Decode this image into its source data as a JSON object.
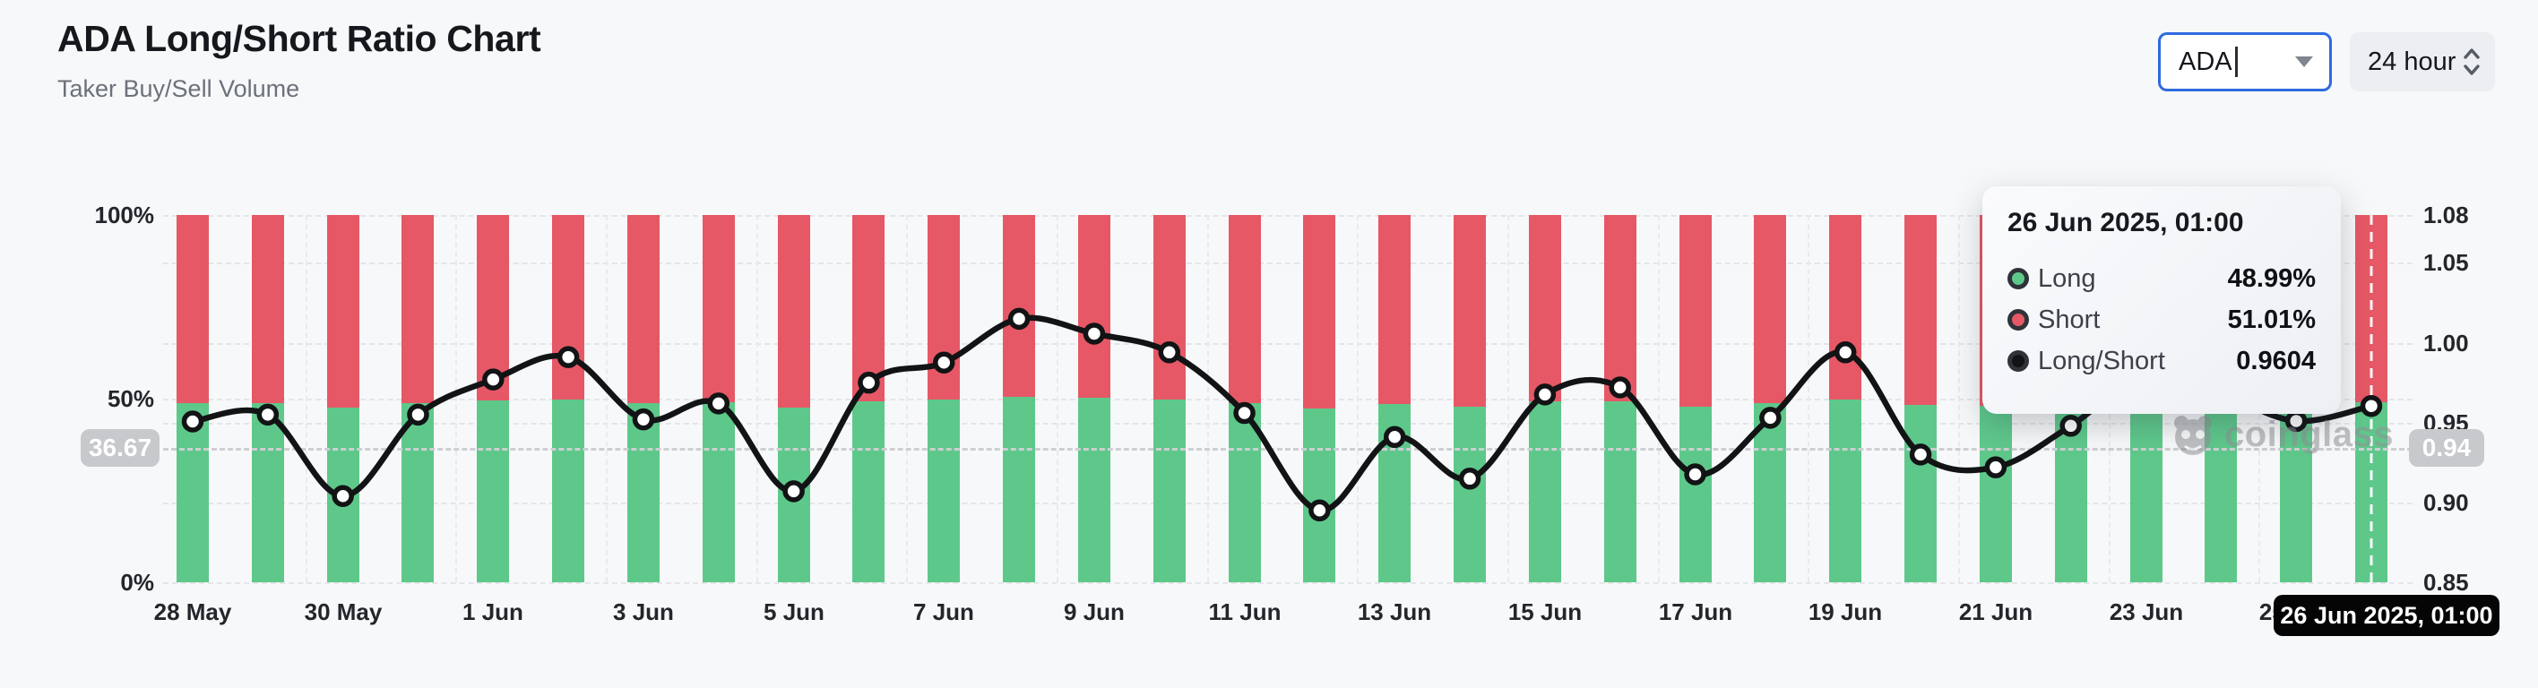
{
  "header": {
    "title": "ADA Long/Short Ratio Chart",
    "subtitle": "Taker Buy/Sell Volume"
  },
  "controls": {
    "symbol_select": {
      "value": "ADA"
    },
    "interval_select": {
      "value": "24 hour"
    }
  },
  "colors": {
    "long_green": "#5ec88b",
    "short_red": "#e65866",
    "ratio_line": "#121315",
    "accent_focus_blue": "#2e6be0",
    "grid": "#e4e5e8",
    "badge_gray": "#c7c9cd",
    "badge_black": "#050506"
  },
  "chart_data": {
    "type": "stacked-bar+line",
    "title": "ADA Long/Short Ratio Chart",
    "categories": [
      "28 May",
      "29 May",
      "30 May",
      "31 May",
      "1 Jun",
      "2 Jun",
      "3 Jun",
      "4 Jun",
      "5 Jun",
      "6 Jun",
      "7 Jun",
      "8 Jun",
      "9 Jun",
      "10 Jun",
      "11 Jun",
      "12 Jun",
      "13 Jun",
      "14 Jun",
      "15 Jun",
      "16 Jun",
      "17 Jun",
      "18 Jun",
      "19 Jun",
      "20 Jun",
      "21 Jun",
      "22 Jun",
      "23 Jun",
      "24 Jun",
      "25 Jun",
      "26 Jun"
    ],
    "x_tick_labels": [
      "28 May",
      "30 May",
      "1 Jun",
      "3 Jun",
      "5 Jun",
      "7 Jun",
      "9 Jun",
      "11 Jun",
      "13 Jun",
      "15 Jun",
      "17 Jun",
      "19 Jun",
      "21 Jun",
      "23 Jun",
      "25 Jun"
    ],
    "x_tick_every": 2,
    "series": [
      {
        "name": "Long",
        "unit": "%",
        "axis": "left",
        "color": "#5ec88b",
        "values": [
          48.74,
          48.85,
          47.48,
          48.85,
          49.42,
          49.77,
          48.77,
          49.03,
          47.56,
          49.37,
          49.69,
          50.37,
          50.14,
          49.85,
          48.88,
          47.23,
          48.48,
          47.78,
          49.18,
          49.29,
          47.85,
          48.8,
          49.85,
          48.19,
          47.97,
          48.67,
          49.49,
          49.19,
          48.75,
          48.99
        ]
      },
      {
        "name": "Short",
        "unit": "%",
        "axis": "left",
        "color": "#e65866",
        "values": [
          51.26,
          51.15,
          52.52,
          51.15,
          50.58,
          50.23,
          51.23,
          50.97,
          52.44,
          50.63,
          50.31,
          49.63,
          49.86,
          50.15,
          51.12,
          52.77,
          51.52,
          52.22,
          50.82,
          50.71,
          52.15,
          51.2,
          50.15,
          51.81,
          52.03,
          51.33,
          50.51,
          50.81,
          51.25,
          51.01
        ]
      },
      {
        "name": "Long/Short",
        "type": "line",
        "axis": "right",
        "color": "#121315",
        "values": [
          0.9507,
          0.955,
          0.904,
          0.955,
          0.977,
          0.991,
          0.952,
          0.962,
          0.907,
          0.975,
          0.9876,
          1.015,
          1.0057,
          0.994,
          0.956,
          0.895,
          0.941,
          0.9149,
          0.9676,
          0.972,
          0.9176,
          0.953,
          0.994,
          0.93,
          0.922,
          0.948,
          0.98,
          0.968,
          0.951,
          0.9604
        ]
      }
    ],
    "left_axis": {
      "ticks": [
        {
          "label": "100%",
          "value": 100
        },
        {
          "label": "50%",
          "value": 50
        },
        {
          "label": "0%",
          "value": 0
        }
      ],
      "min": 0,
      "max": 100
    },
    "right_axis": {
      "ticks": [
        {
          "label": "1.08",
          "value": 1.08
        },
        {
          "label": "1.05",
          "value": 1.05
        },
        {
          "label": "1.00",
          "value": 1.0
        },
        {
          "label": "0.95",
          "value": 0.95
        },
        {
          "label": "0.90",
          "value": 0.9
        },
        {
          "label": "0.85",
          "value": 0.85
        }
      ],
      "min": 0.85,
      "max": 1.08
    },
    "grid_right_values": [
      1.05,
      1.0,
      0.95,
      0.9
    ],
    "grid_left_values": [
      50
    ],
    "legend_position": "tooltip-only"
  },
  "crosshair": {
    "index": 29,
    "y_left_value": 36.67,
    "left_badge": "36.67",
    "right_badge": "0.94",
    "x_badge": "26 Jun 2025, 01:00"
  },
  "tooltip": {
    "title": "26 Jun 2025, 01:00",
    "rows": [
      {
        "key": "long",
        "label": "Long",
        "value": "48.99%",
        "color": "#5ec88b"
      },
      {
        "key": "short",
        "label": "Short",
        "value": "51.01%",
        "color": "#e65866"
      },
      {
        "key": "long-short",
        "label": "Long/Short",
        "value": "0.9604",
        "color": "#121315"
      }
    ]
  },
  "watermark": {
    "text": "coinglass"
  }
}
